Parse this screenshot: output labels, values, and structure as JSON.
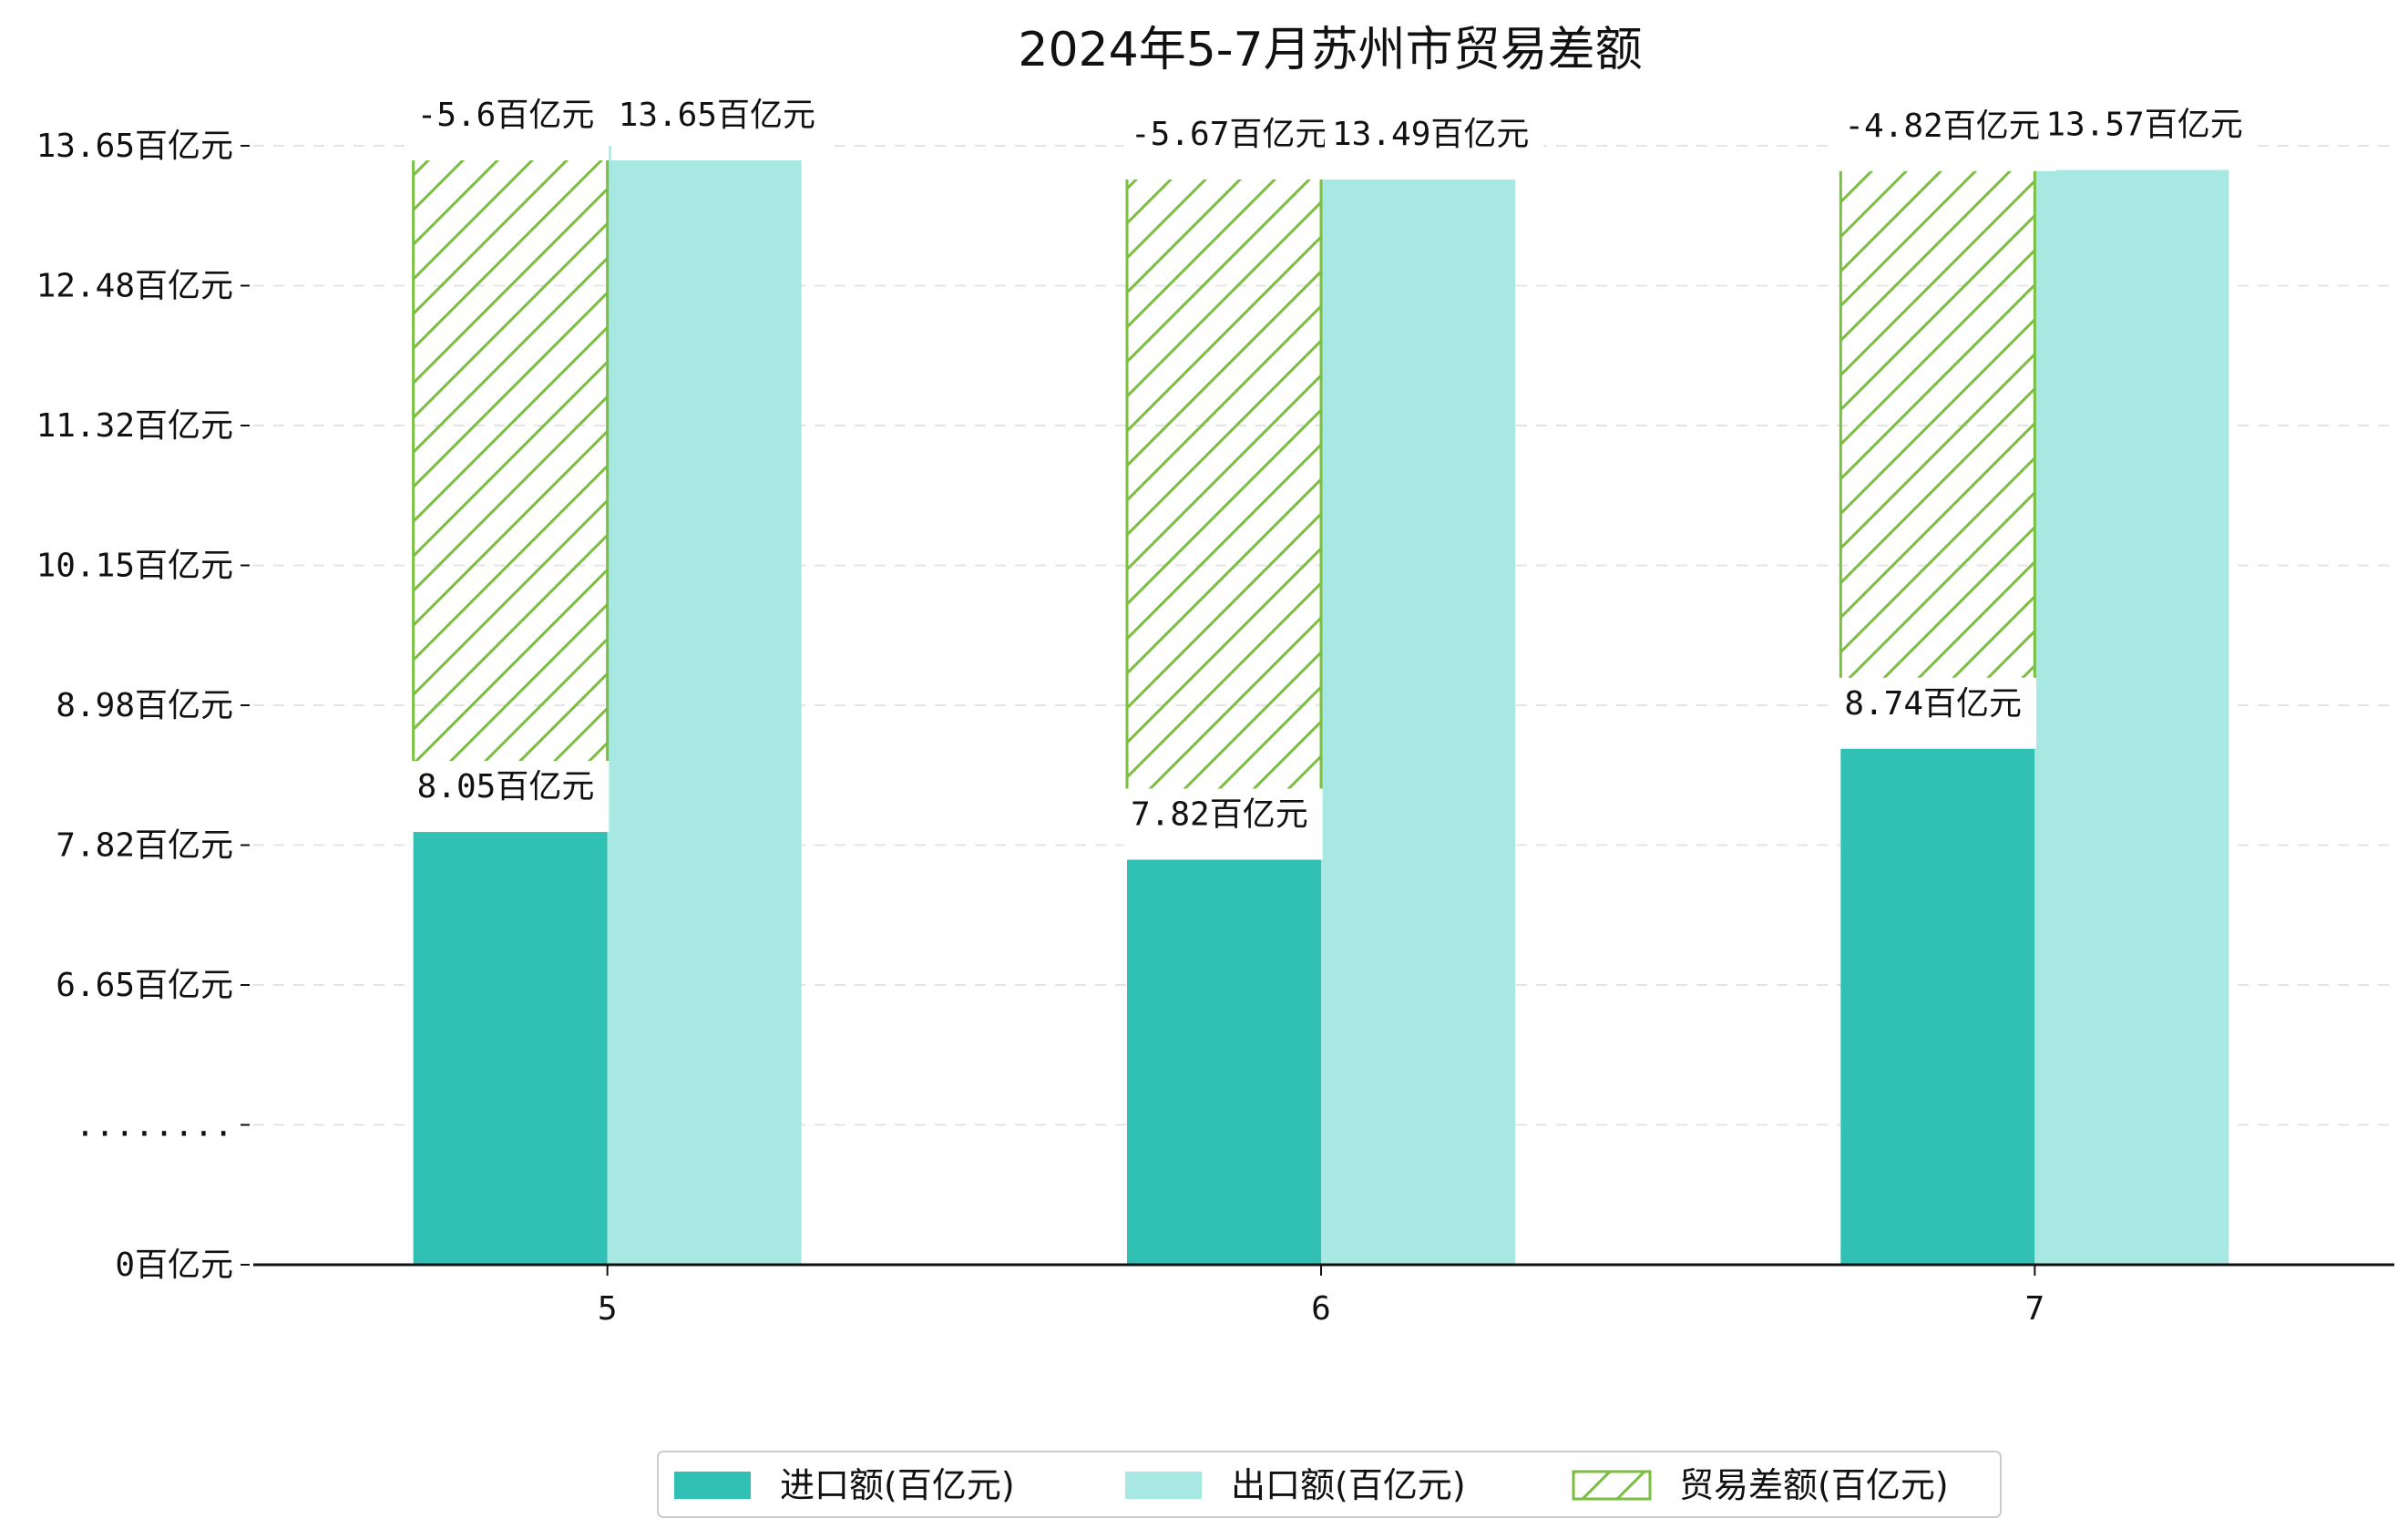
{
  "chart_data": {
    "type": "bar",
    "title": "2024年5-7月苏州市贸易差额",
    "categories": [
      "5",
      "6",
      "7"
    ],
    "series": [
      {
        "name": "进口额(百亿元)",
        "values": [
          8.05,
          7.82,
          8.74
        ],
        "labels": [
          "8.05百亿元",
          "7.82百亿元",
          "8.74百亿元"
        ],
        "color": "#30c0b4",
        "pattern": "solid"
      },
      {
        "name": "出口额(百亿元)",
        "values": [
          13.65,
          13.49,
          13.57
        ],
        "labels": [
          "13.65百亿元",
          "13.49百亿元",
          "13.57百亿元"
        ],
        "color": "#a8e8e3",
        "pattern": "solid"
      },
      {
        "name": "贸易差额(百亿元)",
        "values": [
          -5.6,
          -5.67,
          -4.82
        ],
        "labels": [
          "-5.6百亿元",
          "-5.67百亿元",
          "-4.82百亿元"
        ],
        "color": "#7abf3f",
        "pattern": "hatch"
      }
    ],
    "y_ticks": [
      {
        "value": 0,
        "label": "0百亿元"
      },
      {
        "value": 5.48,
        "label": "........"
      },
      {
        "value": 6.65,
        "label": "6.65百亿元"
      },
      {
        "value": 7.82,
        "label": "7.82百亿元"
      },
      {
        "value": 8.98,
        "label": "8.98百亿元"
      },
      {
        "value": 10.15,
        "label": "10.15百亿元"
      },
      {
        "value": 11.32,
        "label": "11.32百亿元"
      },
      {
        "value": 12.48,
        "label": "12.48百亿元"
      },
      {
        "value": 13.65,
        "label": "13.65百亿元"
      }
    ],
    "y_axis_break": true,
    "grid": "horizontal-dashed",
    "legend": "bottom-center"
  }
}
